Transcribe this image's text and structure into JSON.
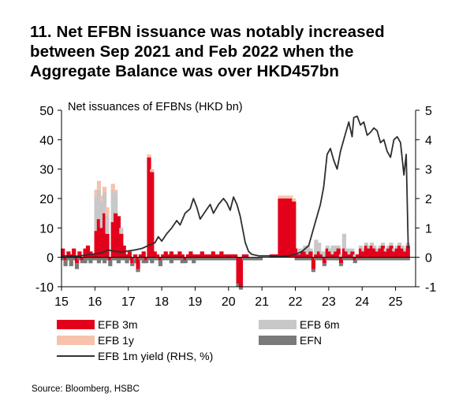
{
  "title_lines": [
    "11. Net EFBN issuance was notably increased",
    "between Sep 2021 and Feb 2022 when the",
    "Aggregate Balance was over HKD457bn"
  ],
  "source": "Source: Bloomberg, HSBC",
  "chart_data": {
    "type": "bar",
    "subtitle": "Net issuances of EFBNs (HKD bn)",
    "x_tick_labels": [
      "15",
      "16",
      "17",
      "18",
      "19",
      "20",
      "21",
      "22",
      "23",
      "24",
      "25"
    ],
    "x_range": [
      2015.0,
      2025.6
    ],
    "y_left": {
      "ticks": [
        -10,
        0,
        10,
        20,
        30,
        40,
        50
      ],
      "range": [
        -10,
        50
      ]
    },
    "y_right": {
      "ticks": [
        -1,
        0,
        1,
        2,
        3,
        4,
        5
      ],
      "range": [
        -1,
        5
      ]
    },
    "colors": {
      "efb3m": "#e3001b",
      "efb6m": "#c8c8c8",
      "efb1y": "#f6c2ab",
      "efn": "#7a7a7a",
      "yield": "#2e2e2e"
    },
    "legend": [
      {
        "key": "efb3m",
        "label": "EFB 3m"
      },
      {
        "key": "efb6m",
        "label": "EFB 6m"
      },
      {
        "key": "efb1y",
        "label": "EFB 1y"
      },
      {
        "key": "efn",
        "label": "EFN"
      },
      {
        "key": "yield",
        "label": "EFB 1m yield (RHS, %)"
      }
    ],
    "bar_series": {
      "note": "x = date (fractional year), values in HKD bn; stacked positive values",
      "x": [
        2015.04,
        2015.12,
        2015.21,
        2015.29,
        2015.37,
        2015.46,
        2015.54,
        2015.62,
        2015.71,
        2015.79,
        2015.87,
        2015.96,
        2016.04,
        2016.12,
        2016.21,
        2016.29,
        2016.37,
        2016.46,
        2016.54,
        2016.62,
        2016.71,
        2016.79,
        2016.87,
        2016.96,
        2017.04,
        2017.12,
        2017.21,
        2017.29,
        2017.37,
        2017.46,
        2017.54,
        2017.62,
        2017.71,
        2017.79,
        2017.87,
        2017.96,
        2018.04,
        2018.12,
        2018.21,
        2018.29,
        2018.37,
        2018.46,
        2018.54,
        2018.62,
        2018.71,
        2018.79,
        2018.87,
        2018.96,
        2019.04,
        2019.12,
        2019.21,
        2019.29,
        2019.37,
        2019.46,
        2019.54,
        2019.62,
        2019.71,
        2019.79,
        2019.87,
        2019.96,
        2020.04,
        2020.12,
        2020.21,
        2020.29,
        2020.37,
        2020.46,
        2020.54,
        2020.62,
        2020.71,
        2020.79,
        2020.87,
        2020.96,
        2021.04,
        2021.12,
        2021.21,
        2021.29,
        2021.37,
        2021.46,
        2021.54,
        2021.62,
        2021.71,
        2021.79,
        2021.87,
        2021.96,
        2022.04,
        2022.12,
        2022.21,
        2022.29,
        2022.37,
        2022.46,
        2022.54,
        2022.62,
        2022.71,
        2022.79,
        2022.87,
        2022.96,
        2023.04,
        2023.12,
        2023.21,
        2023.29,
        2023.37,
        2023.46,
        2023.54,
        2023.62,
        2023.71,
        2023.79,
        2023.87,
        2023.96,
        2024.04,
        2024.12,
        2024.21,
        2024.29,
        2024.37,
        2024.46,
        2024.54,
        2024.62,
        2024.71,
        2024.79,
        2024.87,
        2024.96,
        2025.04,
        2025.12,
        2025.21,
        2025.29,
        2025.37
      ],
      "efb3m": [
        3,
        -1,
        2,
        1,
        3,
        -2,
        2,
        -1,
        3,
        4,
        2,
        1,
        9,
        13,
        10,
        15,
        8,
        -1,
        12,
        15,
        14,
        8,
        4,
        1,
        2,
        -2,
        1,
        -4,
        1,
        2,
        -1,
        34,
        29,
        2,
        1,
        -1,
        1,
        2,
        1,
        2,
        1,
        1,
        2,
        1,
        -1,
        1,
        2,
        1,
        1,
        1,
        2,
        1,
        1,
        1,
        2,
        1,
        1,
        2,
        1,
        1,
        1,
        1,
        1,
        -9,
        -10,
        1,
        1,
        0,
        0,
        0,
        0,
        0,
        0,
        0,
        0,
        1,
        1,
        1,
        20,
        20,
        20,
        20,
        20,
        19,
        3,
        1,
        2,
        2,
        1,
        2,
        -4,
        1,
        2,
        1,
        -2,
        3,
        2,
        1,
        2,
        3,
        -2,
        3,
        2,
        1,
        2,
        -1,
        1,
        3,
        2,
        4,
        3,
        4,
        3,
        2,
        3,
        4,
        2,
        3,
        4,
        2,
        3,
        4,
        3,
        2,
        4
      ],
      "efb6m": [
        0,
        0,
        0,
        0,
        0,
        0,
        0,
        0,
        0,
        0,
        0,
        0,
        12,
        10,
        9,
        7,
        6,
        0,
        11,
        7,
        0,
        2,
        0,
        0,
        0,
        0,
        0,
        0,
        0,
        0,
        0,
        0,
        0,
        0,
        0,
        0,
        0,
        0,
        0,
        0,
        0,
        0,
        0,
        0,
        0,
        0,
        0,
        0,
        0,
        0,
        0,
        0,
        0,
        0,
        0,
        0,
        0,
        0,
        0,
        0,
        0,
        0,
        0,
        0,
        0,
        0,
        0,
        0,
        0,
        0,
        0,
        0,
        0,
        0,
        0,
        0,
        0,
        0,
        0,
        0,
        0,
        0,
        0,
        0,
        0,
        2,
        1,
        2,
        3,
        1,
        0,
        5,
        3,
        1,
        2,
        1,
        1,
        3,
        2,
        1,
        1,
        5,
        1,
        2,
        1,
        1,
        0,
        1,
        1,
        1,
        1,
        1,
        1,
        1,
        1,
        1,
        1,
        1,
        1,
        1,
        1,
        1,
        1,
        1,
        1
      ],
      "efb1y": [
        0,
        0,
        0,
        0,
        0,
        0,
        0,
        0,
        0,
        0,
        0,
        0,
        2,
        3,
        2,
        2,
        3,
        0,
        2,
        1,
        0,
        0,
        0,
        0,
        0,
        0,
        0,
        0,
        0,
        0,
        0,
        1,
        1,
        0,
        0,
        0,
        0,
        0,
        0,
        0,
        0,
        0,
        0,
        0,
        0,
        0,
        0,
        0,
        0,
        0,
        0,
        0,
        0,
        0,
        0,
        0,
        0,
        0,
        0,
        0,
        0,
        0,
        0,
        0,
        0,
        0,
        0,
        0,
        0,
        0,
        0,
        0,
        0,
        0,
        0,
        0,
        0,
        0,
        1,
        1,
        1,
        1,
        1,
        1,
        0,
        0,
        0,
        0,
        0,
        0,
        0,
        0,
        0,
        0,
        0,
        0,
        0,
        0,
        0,
        0,
        0,
        0,
        0,
        0,
        0,
        0,
        0,
        0,
        0,
        0,
        0,
        0,
        0,
        0,
        0,
        0,
        0,
        0,
        0,
        0,
        0,
        0,
        0,
        0,
        0
      ],
      "efn": [
        -1,
        -2,
        -1,
        -3,
        -1,
        -2,
        -1,
        -1,
        -2,
        -1,
        -2,
        -1,
        -1,
        -2,
        -1,
        -2,
        -1,
        -2,
        -1,
        -1,
        -2,
        -1,
        -1,
        -2,
        -1,
        -1,
        -2,
        -1,
        -1,
        -2,
        -1,
        -1,
        -2,
        -1,
        -1,
        -2,
        -1,
        -1,
        -1,
        -2,
        -1,
        -1,
        -1,
        -2,
        -1,
        -1,
        -1,
        -2,
        -1,
        -1,
        -1,
        -1,
        -1,
        -1,
        -1,
        -1,
        -1,
        -1,
        -1,
        -1,
        -1,
        -1,
        -1,
        -1,
        -1,
        -1,
        -1,
        -1,
        -1,
        -1,
        -1,
        -1,
        0,
        0,
        0,
        0,
        0,
        0,
        0,
        0,
        0,
        0,
        0,
        0,
        -1,
        -1,
        -1,
        -1,
        -1,
        -1,
        -1,
        -1,
        -1,
        -1,
        -1,
        -1,
        -1,
        -1,
        -1,
        -1,
        -1,
        -1,
        -1,
        -1,
        -1,
        -1,
        -1,
        -1,
        -1,
        -1,
        -1,
        -1,
        -1,
        -1,
        -1,
        -1,
        -1,
        -1,
        -1,
        -1,
        -1,
        -1,
        -1,
        -1,
        -1
      ]
    },
    "yield_series": {
      "name": "EFB 1m yield (RHS, %)",
      "points": [
        [
          2015.0,
          0.05
        ],
        [
          2015.5,
          0.04
        ],
        [
          2015.9,
          0.1
        ],
        [
          2016.2,
          0.15
        ],
        [
          2016.4,
          0.25
        ],
        [
          2016.6,
          0.2
        ],
        [
          2016.8,
          0.18
        ],
        [
          2017.0,
          0.22
        ],
        [
          2017.2,
          0.25
        ],
        [
          2017.4,
          0.3
        ],
        [
          2017.6,
          0.4
        ],
        [
          2017.8,
          0.5
        ],
        [
          2017.9,
          0.7
        ],
        [
          2018.0,
          0.55
        ],
        [
          2018.15,
          0.8
        ],
        [
          2018.3,
          1.0
        ],
        [
          2018.45,
          1.25
        ],
        [
          2018.55,
          1.1
        ],
        [
          2018.7,
          1.5
        ],
        [
          2018.85,
          1.65
        ],
        [
          2018.95,
          2.0
        ],
        [
          2019.05,
          1.7
        ],
        [
          2019.15,
          1.3
        ],
        [
          2019.3,
          1.55
        ],
        [
          2019.45,
          1.8
        ],
        [
          2019.55,
          1.5
        ],
        [
          2019.7,
          1.8
        ],
        [
          2019.85,
          2.0
        ],
        [
          2019.95,
          1.85
        ],
        [
          2020.05,
          1.6
        ],
        [
          2020.15,
          2.05
        ],
        [
          2020.25,
          1.8
        ],
        [
          2020.35,
          1.4
        ],
        [
          2020.5,
          0.5
        ],
        [
          2020.6,
          0.2
        ],
        [
          2020.7,
          0.1
        ],
        [
          2020.9,
          0.05
        ],
        [
          2021.2,
          0.05
        ],
        [
          2021.5,
          0.03
        ],
        [
          2021.8,
          0.05
        ],
        [
          2022.0,
          0.1
        ],
        [
          2022.2,
          0.2
        ],
        [
          2022.4,
          0.4
        ],
        [
          2022.5,
          0.8
        ],
        [
          2022.6,
          1.2
        ],
        [
          2022.75,
          1.8
        ],
        [
          2022.85,
          2.4
        ],
        [
          2022.95,
          3.5
        ],
        [
          2023.05,
          3.7
        ],
        [
          2023.15,
          3.3
        ],
        [
          2023.25,
          3.0
        ],
        [
          2023.35,
          3.6
        ],
        [
          2023.5,
          4.2
        ],
        [
          2023.6,
          4.6
        ],
        [
          2023.7,
          4.1
        ],
        [
          2023.75,
          4.75
        ],
        [
          2023.85,
          4.8
        ],
        [
          2023.95,
          4.5
        ],
        [
          2024.05,
          4.6
        ],
        [
          2024.15,
          4.15
        ],
        [
          2024.25,
          4.25
        ],
        [
          2024.35,
          4.4
        ],
        [
          2024.45,
          4.3
        ],
        [
          2024.55,
          3.9
        ],
        [
          2024.65,
          4.0
        ],
        [
          2024.75,
          3.6
        ],
        [
          2024.85,
          3.4
        ],
        [
          2024.95,
          4.0
        ],
        [
          2025.05,
          4.1
        ],
        [
          2025.15,
          3.9
        ],
        [
          2025.25,
          2.8
        ],
        [
          2025.32,
          3.5
        ],
        [
          2025.38,
          0.3
        ]
      ]
    }
  }
}
